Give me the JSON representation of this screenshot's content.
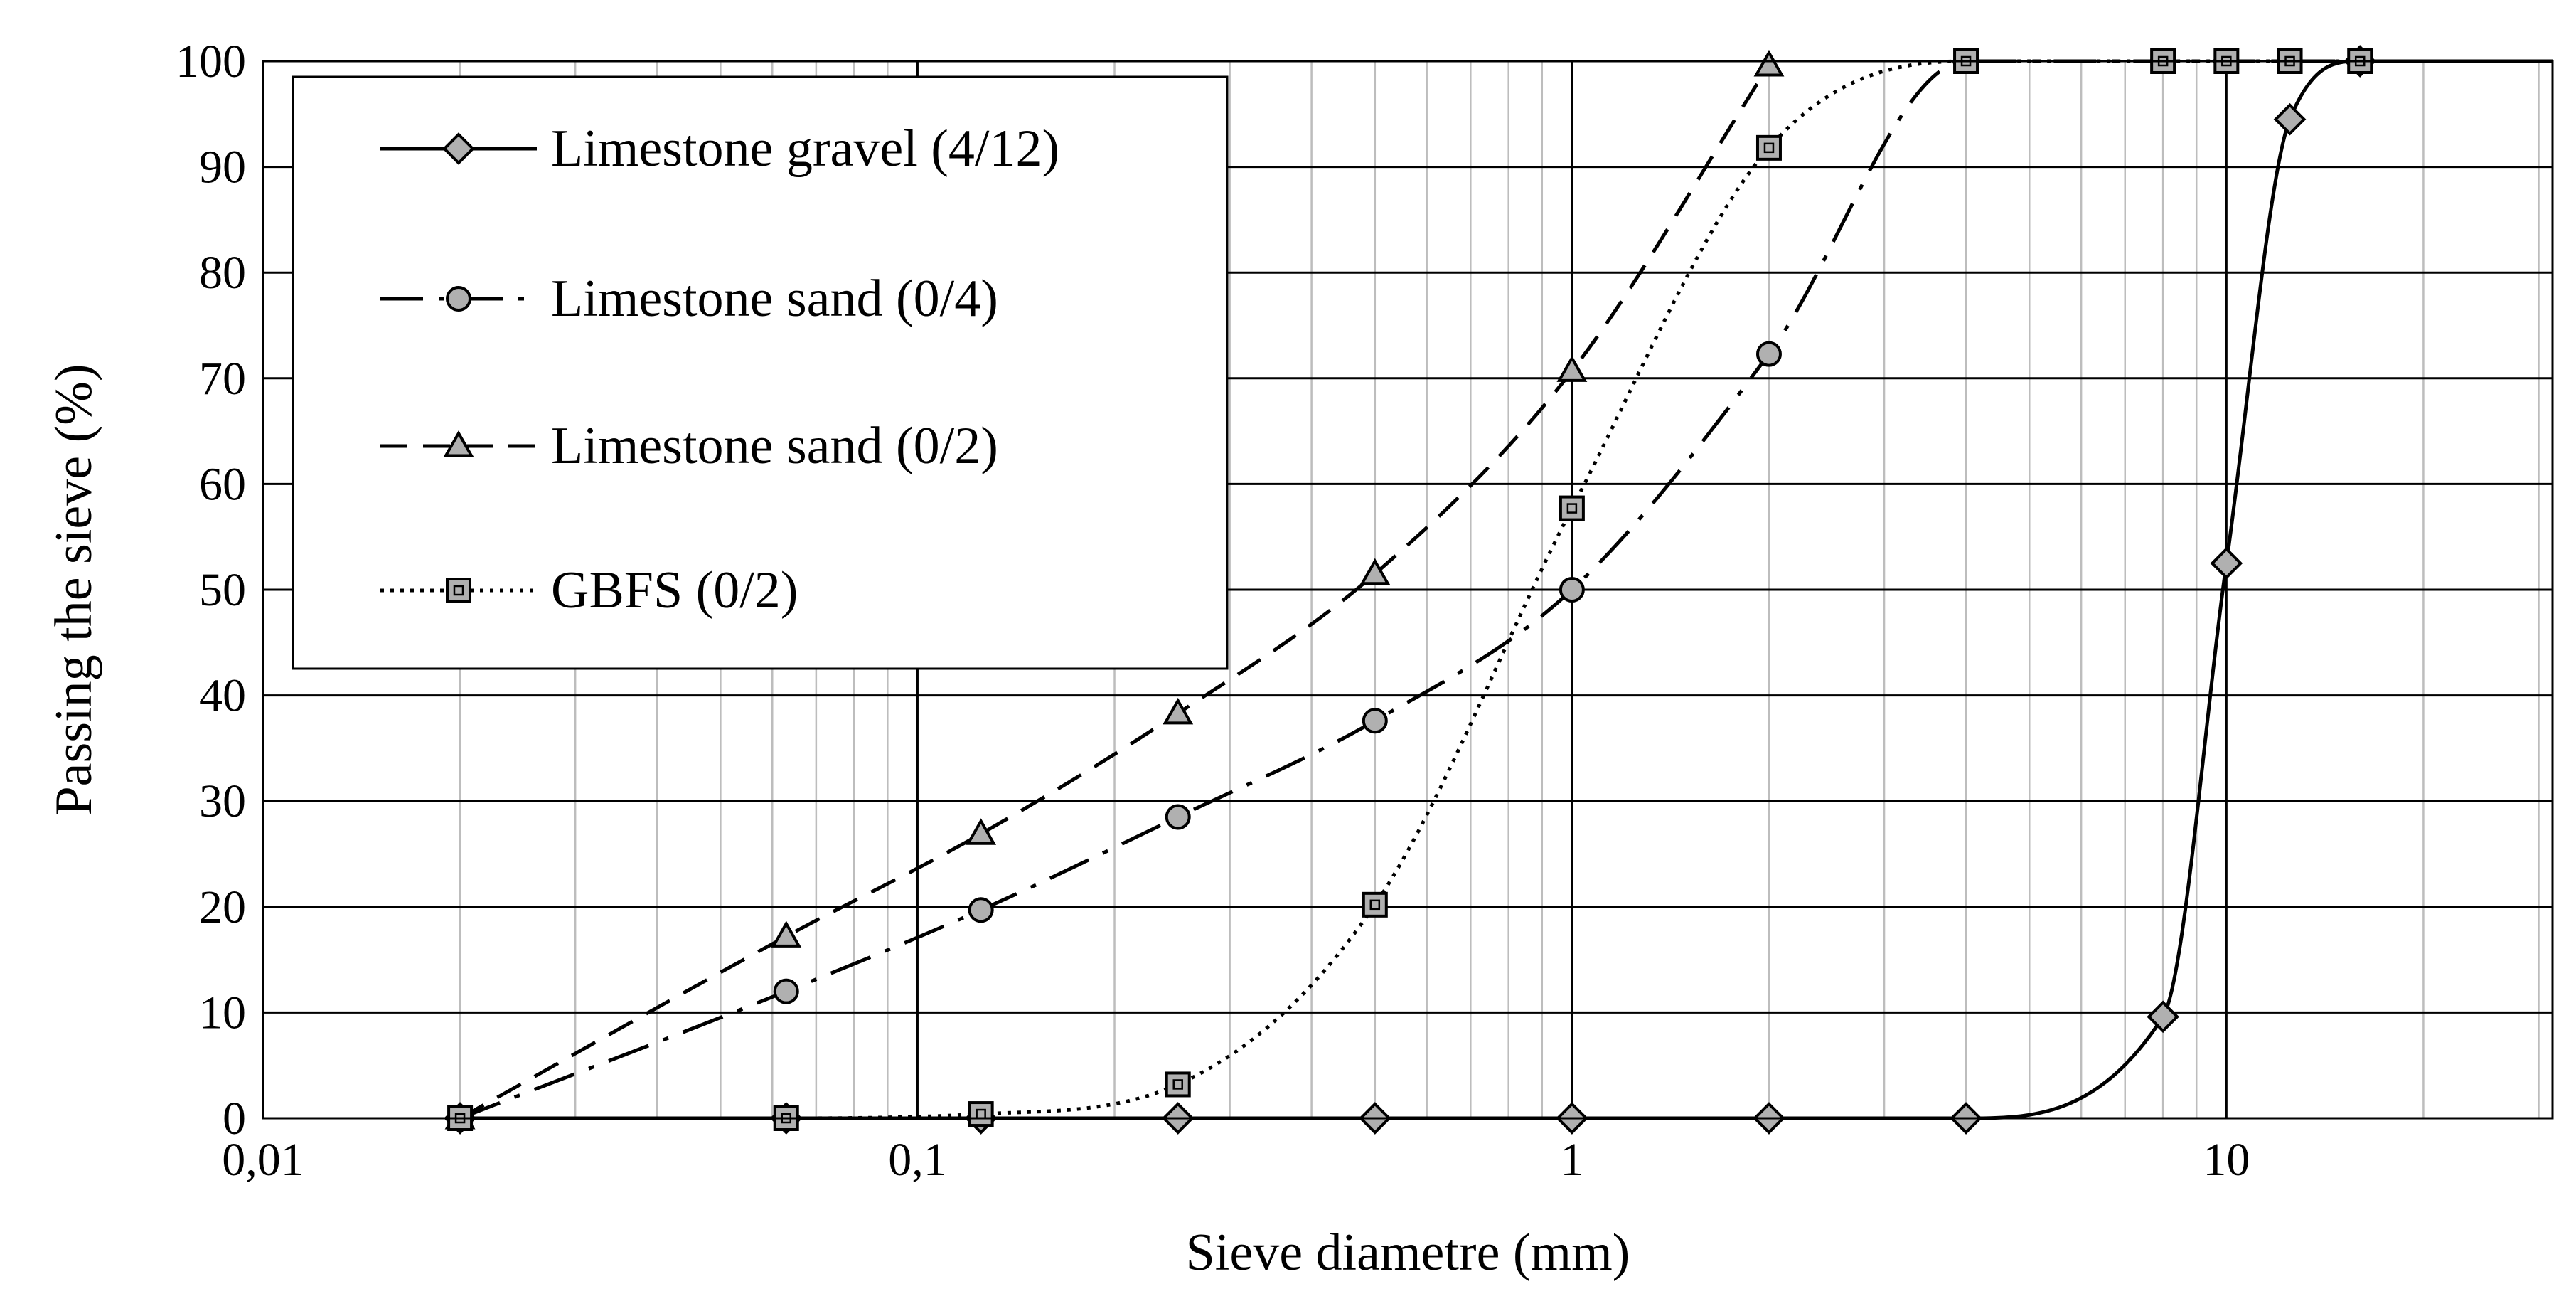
{
  "chart_data": {
    "type": "line",
    "title": "",
    "xlabel": "Sieve diametre (mm)",
    "ylabel": "Passing the sieve (%)",
    "x_scale": "log",
    "xlim": [
      0.01,
      31.5
    ],
    "ylim": [
      0,
      100
    ],
    "x_ticks": [
      0.01,
      0.1,
      1,
      10
    ],
    "x_tick_labels": [
      "0,01",
      "0,1",
      "1",
      "10"
    ],
    "y_ticks": [
      0,
      10,
      20,
      30,
      40,
      50,
      60,
      70,
      80,
      90,
      100
    ],
    "y_tick_labels": [
      "0",
      "10",
      "20",
      "30",
      "40",
      "50",
      "60",
      "70",
      "80",
      "90",
      "100"
    ],
    "grid": true,
    "legend_position": "top-left",
    "series": [
      {
        "name": "Limestone gravel (4/12)",
        "line_style": "solid",
        "marker": "diamond",
        "marker_color": "#b0b0b0",
        "x": [
          0.02,
          0.063,
          0.125,
          0.25,
          0.5,
          1,
          2,
          4,
          8,
          10,
          12.5,
          16
        ],
        "y": [
          0,
          0,
          0,
          0,
          0,
          0,
          0,
          0,
          9.6,
          52.5,
          94.5,
          100
        ]
      },
      {
        "name": "Limestone sand (0/4)",
        "line_style": "dash-dot",
        "marker": "circle",
        "marker_color": "#b0b0b0",
        "x": [
          0.02,
          0.063,
          0.125,
          0.25,
          0.5,
          1,
          2,
          4,
          8,
          10,
          12.5,
          16
        ],
        "y": [
          0,
          12,
          19.7,
          28.5,
          37.6,
          50,
          72.3,
          100,
          100,
          100,
          100,
          100
        ]
      },
      {
        "name": "Limestone sand (0/2)",
        "line_style": "dashed",
        "marker": "triangle",
        "marker_color": "#b0b0b0",
        "x": [
          0.02,
          0.063,
          0.125,
          0.25,
          0.5,
          1,
          2
        ],
        "y": [
          0,
          17.2,
          26.9,
          38.3,
          51.5,
          70.7,
          99.6
        ]
      },
      {
        "name": "GBFS (0/2)",
        "line_style": "dotted",
        "marker": "square",
        "marker_color": "#b0b0b0",
        "x": [
          0.02,
          0.063,
          0.125,
          0.25,
          0.5,
          1,
          2,
          4,
          8,
          10,
          12.5,
          16
        ],
        "y": [
          0,
          0,
          0.4,
          3.2,
          20.2,
          57.7,
          91.8,
          100,
          100,
          100,
          100,
          100
        ]
      }
    ]
  }
}
